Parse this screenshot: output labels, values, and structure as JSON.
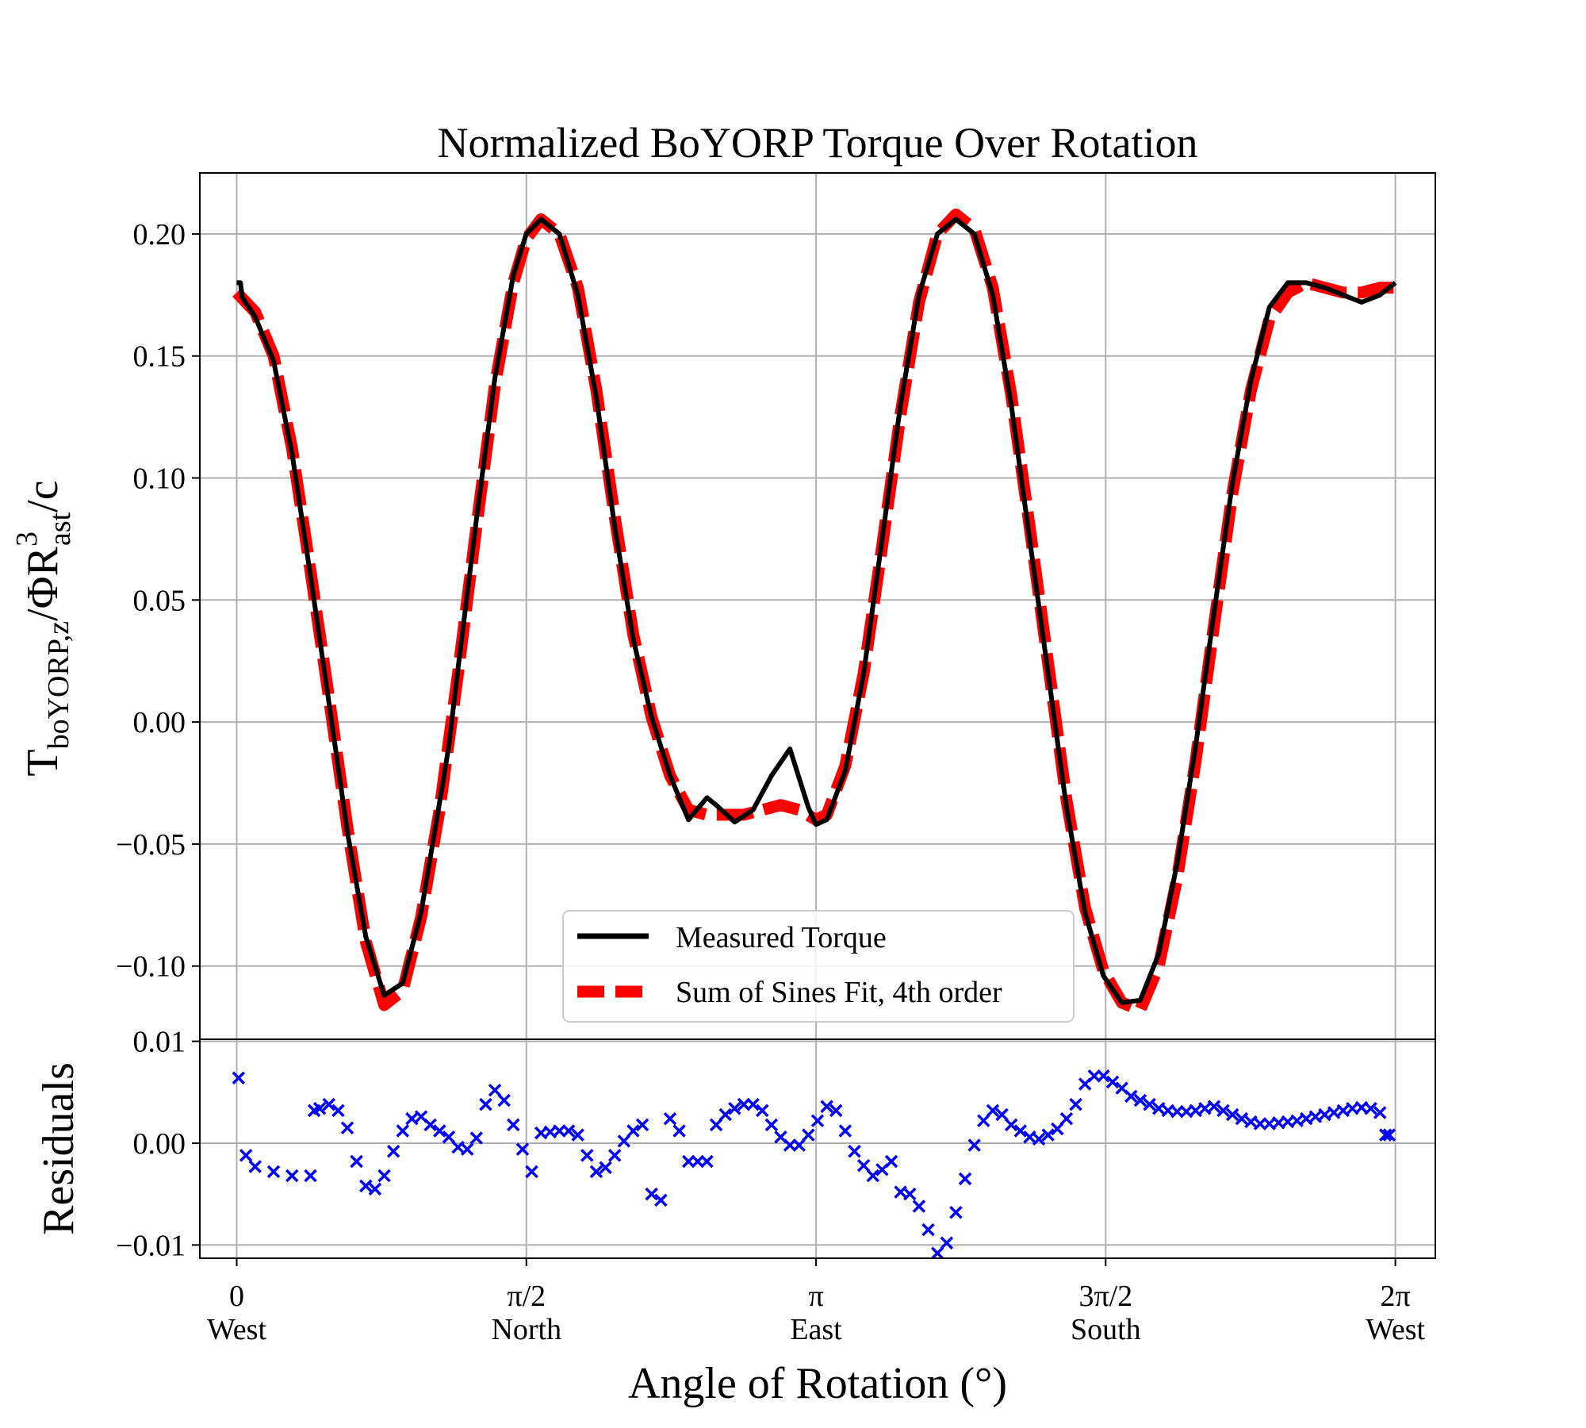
{
  "chart_data": [
    {
      "type": "line",
      "title": "Normalized BoYORP Torque Over Rotation",
      "ylabel": {
        "main": "T",
        "sub": "boYORP,z",
        "mid": "/ΦR",
        "sup": "3",
        "sub2": "ast",
        "tail": "/c"
      },
      "xlim": [
        -0.2,
        6.5
      ],
      "ylim": [
        -0.13,
        0.225
      ],
      "grid": true,
      "yticks": [
        {
          "value": 0.2,
          "label": "0.20"
        },
        {
          "value": 0.15,
          "label": "0.15"
        },
        {
          "value": 0.1,
          "label": "0.10"
        },
        {
          "value": 0.05,
          "label": "0.05"
        },
        {
          "value": 0.0,
          "label": "0.00"
        },
        {
          "value": -0.05,
          "label": "−0.05"
        },
        {
          "value": -0.1,
          "label": "−0.10"
        }
      ],
      "legend": {
        "position": "lower-center",
        "entries": [
          {
            "label": "Measured Torque",
            "color": "#000000",
            "style": "solid"
          },
          {
            "label": "Sum of Sines Fit, 4th order",
            "color": "#ff0000",
            "style": "dashed"
          }
        ]
      },
      "series": [
        {
          "name": "Measured Torque",
          "color": "#000000",
          "x": [
            0.0,
            0.02,
            0.03,
            0.1,
            0.2,
            0.3,
            0.4,
            0.5,
            0.6,
            0.7,
            0.8,
            0.9,
            1.0,
            1.1,
            1.15,
            1.2,
            1.3,
            1.4,
            1.5,
            1.57,
            1.65,
            1.75,
            1.85,
            1.95,
            2.05,
            2.15,
            2.25,
            2.35,
            2.45,
            2.55,
            2.6,
            2.7,
            2.8,
            2.9,
            3.0,
            3.1,
            3.1416,
            3.2,
            3.3,
            3.4,
            3.5,
            3.6,
            3.7,
            3.8,
            3.9,
            4.0,
            4.1,
            4.2,
            4.3,
            4.4,
            4.5,
            4.6,
            4.7,
            4.8,
            4.9,
            5.0,
            5.1,
            5.2,
            5.3,
            5.4,
            5.5,
            5.6,
            5.7,
            5.8,
            5.9,
            6.0,
            6.1,
            6.2,
            6.283
          ],
          "y": [
            0.18,
            0.18,
            0.174,
            0.166,
            0.148,
            0.11,
            0.06,
            0.008,
            -0.045,
            -0.088,
            -0.112,
            -0.107,
            -0.078,
            -0.033,
            -0.01,
            0.022,
            0.083,
            0.141,
            0.183,
            0.2,
            0.206,
            0.2,
            0.175,
            0.133,
            0.08,
            0.034,
            0.002,
            -0.022,
            -0.04,
            -0.031,
            -0.034,
            -0.041,
            -0.036,
            -0.022,
            -0.011,
            -0.035,
            -0.042,
            -0.04,
            -0.02,
            0.02,
            0.075,
            0.13,
            0.175,
            0.2,
            0.206,
            0.2,
            0.175,
            0.13,
            0.075,
            0.02,
            -0.035,
            -0.078,
            -0.104,
            -0.115,
            -0.114,
            -0.095,
            -0.058,
            -0.01,
            0.045,
            0.098,
            0.14,
            0.17,
            0.18,
            0.18,
            0.178,
            0.175,
            0.172,
            0.175,
            0.18
          ]
        },
        {
          "name": "Sum of Sines Fit, 4th order",
          "color": "#ff0000",
          "x": [
            0.0,
            0.1,
            0.2,
            0.3,
            0.4,
            0.5,
            0.6,
            0.7,
            0.8,
            0.9,
            1.0,
            1.1,
            1.2,
            1.3,
            1.4,
            1.5,
            1.57,
            1.65,
            1.75,
            1.85,
            1.95,
            2.05,
            2.15,
            2.25,
            2.35,
            2.45,
            2.55,
            2.65,
            2.75,
            2.85,
            2.95,
            3.05,
            3.1416,
            3.2,
            3.3,
            3.4,
            3.5,
            3.6,
            3.7,
            3.8,
            3.9,
            4.0,
            4.1,
            4.2,
            4.3,
            4.4,
            4.5,
            4.6,
            4.7,
            4.8,
            4.9,
            5.0,
            5.1,
            5.2,
            5.3,
            5.4,
            5.5,
            5.6,
            5.7,
            5.8,
            5.9,
            6.0,
            6.1,
            6.2,
            6.283
          ],
          "y": [
            0.176,
            0.168,
            0.15,
            0.112,
            0.062,
            0.01,
            -0.043,
            -0.09,
            -0.116,
            -0.11,
            -0.08,
            -0.036,
            0.02,
            0.08,
            0.138,
            0.18,
            0.198,
            0.206,
            0.2,
            0.178,
            0.136,
            0.084,
            0.036,
            0.002,
            -0.022,
            -0.036,
            -0.038,
            -0.038,
            -0.038,
            -0.036,
            -0.034,
            -0.036,
            -0.04,
            -0.038,
            -0.018,
            0.02,
            0.072,
            0.126,
            0.172,
            0.2,
            0.208,
            0.202,
            0.178,
            0.134,
            0.08,
            0.024,
            -0.032,
            -0.076,
            -0.102,
            -0.115,
            -0.118,
            -0.1,
            -0.064,
            -0.016,
            0.04,
            0.094,
            0.136,
            0.165,
            0.176,
            0.18,
            0.178,
            0.176,
            0.176,
            0.178,
            0.178
          ]
        }
      ]
    },
    {
      "type": "scatter",
      "ylabel": "Residuals",
      "xlabel": "Angle of Rotation (°)",
      "ylim": [
        -0.0113,
        0.0102
      ],
      "grid": true,
      "yticks": [
        {
          "value": 0.01,
          "label": "0.01"
        },
        {
          "value": 0.0,
          "label": "0.00"
        },
        {
          "value": -0.01,
          "label": "−0.01"
        }
      ],
      "xticks": [
        {
          "value": 0,
          "label": "0",
          "sublabel": "West"
        },
        {
          "value": 1.5708,
          "label": "π/2",
          "sublabel": "North"
        },
        {
          "value": 3.1416,
          "label": "π",
          "sublabel": "East"
        },
        {
          "value": 4.7124,
          "label": "3π/2",
          "sublabel": "South"
        },
        {
          "value": 6.2832,
          "label": "2π",
          "sublabel": "West"
        }
      ],
      "series": [
        {
          "name": "Residuals",
          "color": "#0000ff",
          "marker": "x",
          "x": [
            0.01,
            0.05,
            0.1,
            0.2,
            0.3,
            0.4,
            0.42,
            0.45,
            0.5,
            0.55,
            0.6,
            0.65,
            0.7,
            0.75,
            0.8,
            0.85,
            0.9,
            0.95,
            1.0,
            1.05,
            1.1,
            1.15,
            1.2,
            1.25,
            1.3,
            1.35,
            1.4,
            1.45,
            1.5,
            1.55,
            1.6,
            1.65,
            1.7,
            1.75,
            1.8,
            1.85,
            1.9,
            1.95,
            2.0,
            2.05,
            2.1,
            2.15,
            2.2,
            2.25,
            2.3,
            2.35,
            2.4,
            2.45,
            2.5,
            2.55,
            2.6,
            2.65,
            2.7,
            2.75,
            2.8,
            2.85,
            2.9,
            2.95,
            3.0,
            3.05,
            3.1,
            3.15,
            3.2,
            3.25,
            3.3,
            3.35,
            3.4,
            3.45,
            3.5,
            3.55,
            3.6,
            3.65,
            3.7,
            3.75,
            3.8,
            3.85,
            3.9,
            3.95,
            4.0,
            4.05,
            4.1,
            4.15,
            4.2,
            4.25,
            4.3,
            4.35,
            4.4,
            4.45,
            4.5,
            4.55,
            4.6,
            4.65,
            4.7,
            4.75,
            4.8,
            4.85,
            4.9,
            4.95,
            5.0,
            5.05,
            5.1,
            5.15,
            5.2,
            5.25,
            5.3,
            5.35,
            5.4,
            5.45,
            5.5,
            5.55,
            5.6,
            5.65,
            5.7,
            5.75,
            5.8,
            5.85,
            5.9,
            5.95,
            6.0,
            6.05,
            6.1,
            6.15,
            6.2,
            6.23,
            6.25
          ],
          "y": [
            0.0064,
            -0.0012,
            -0.0023,
            -0.0028,
            -0.0032,
            -0.0032,
            0.0032,
            0.0034,
            0.0038,
            0.0032,
            0.0015,
            -0.0018,
            -0.0042,
            -0.0045,
            -0.0032,
            -0.0008,
            0.0012,
            0.0024,
            0.0026,
            0.0018,
            0.0012,
            0.0006,
            -0.0004,
            -0.0006,
            0.0005,
            0.0038,
            0.0052,
            0.0042,
            0.0018,
            -0.0006,
            -0.0028,
            0.001,
            0.0011,
            0.0012,
            0.0012,
            0.0008,
            -0.0012,
            -0.0028,
            -0.0024,
            -0.0012,
            0.0002,
            0.0012,
            0.0018,
            -0.005,
            -0.0056,
            0.0024,
            0.0012,
            -0.0018,
            -0.0018,
            -0.0018,
            0.0018,
            0.0028,
            0.0034,
            0.0038,
            0.0038,
            0.0032,
            0.0018,
            0.0006,
            -0.0002,
            -0.0002,
            0.0008,
            0.0022,
            0.0036,
            0.0032,
            0.0012,
            -0.0008,
            -0.0022,
            -0.0032,
            -0.0026,
            -0.0018,
            -0.0048,
            -0.005,
            -0.0062,
            -0.0085,
            -0.0108,
            -0.0098,
            -0.0068,
            -0.0035,
            -0.0002,
            0.0022,
            0.0032,
            0.0028,
            0.0018,
            0.0012,
            0.0006,
            0.0004,
            0.0008,
            0.0014,
            0.0024,
            0.0038,
            0.0058,
            0.0066,
            0.0066,
            0.006,
            0.0054,
            0.0046,
            0.0042,
            0.0038,
            0.0034,
            0.0032,
            0.0031,
            0.0031,
            0.0032,
            0.0034,
            0.0036,
            0.0032,
            0.0028,
            0.0024,
            0.0021,
            0.0019,
            0.0019,
            0.002,
            0.0021,
            0.0022,
            0.0024,
            0.0026,
            0.0028,
            0.003,
            0.0032,
            0.0034,
            0.0035,
            0.0034,
            0.003,
            0.0008,
            0.0008
          ]
        }
      ]
    }
  ]
}
